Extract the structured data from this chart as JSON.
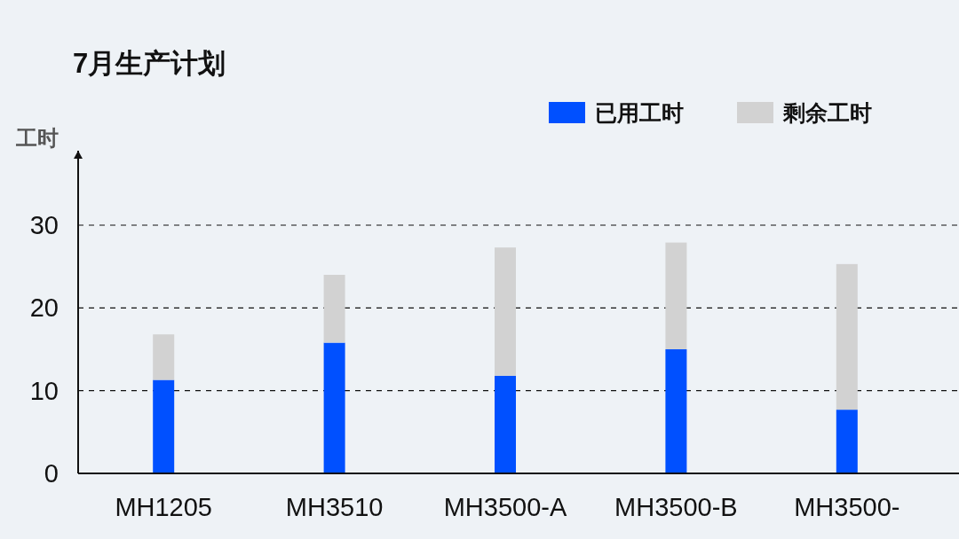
{
  "chart_data": {
    "type": "bar",
    "title": "7月生产计划",
    "ylabel": "工时",
    "categories": [
      "MH1205",
      "MH3510",
      "MH3500-A",
      "MH3500-B",
      "MH3500-"
    ],
    "series": [
      {
        "name": "已用工时",
        "color": "#0050ff",
        "values": [
          11.3,
          15.8,
          11.8,
          15.0,
          7.7
        ]
      },
      {
        "name": "剩余工时",
        "color": "#d2d2d2",
        "values": [
          5.5,
          8.2,
          15.5,
          12.9,
          17.6
        ]
      }
    ],
    "stacked": true,
    "ylim": [
      0,
      39
    ],
    "yticks": [
      0,
      10,
      20,
      30
    ],
    "grid": "y",
    "legend": "top right"
  }
}
